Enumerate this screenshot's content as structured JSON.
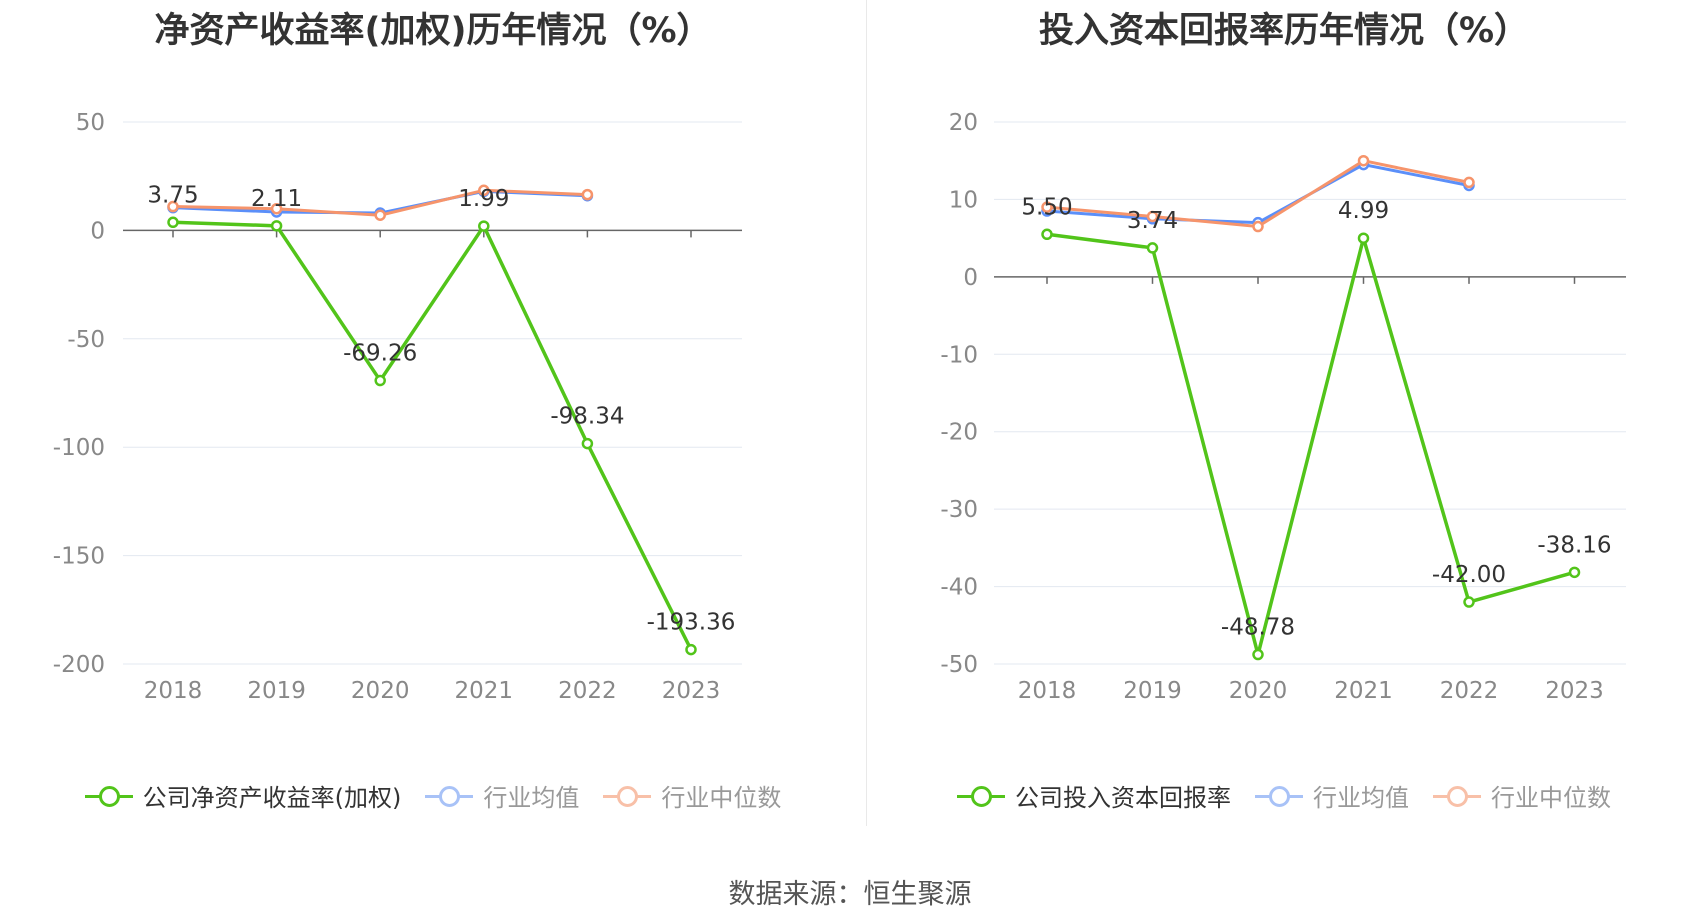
{
  "source": "数据来源：恒生聚源",
  "chart_data": [
    {
      "type": "line",
      "title": "净资产收益率(加权)历年情况（%）",
      "categories": [
        "2018",
        "2019",
        "2020",
        "2021",
        "2022",
        "2023"
      ],
      "ylim": [
        -200,
        50
      ],
      "yticks": [
        50,
        0,
        -50,
        -100,
        -150,
        -200
      ],
      "grid": true,
      "legend_position": "bottom",
      "series": [
        {
          "name": "公司净资产收益率(加权)",
          "color": "#52c41a",
          "values": [
            3.75,
            2.11,
            -69.26,
            1.99,
            -98.34,
            -193.36
          ],
          "labels": [
            "3.75",
            "2.11",
            "-69.26",
            "1.99",
            "-98.34",
            "-193.36"
          ]
        },
        {
          "name": "行业均值",
          "color": "#5b8ff9",
          "values": [
            10.5,
            8.5,
            8.0,
            18.0,
            16.0,
            null
          ]
        },
        {
          "name": "行业中位数",
          "color": "#f6946b",
          "values": [
            11.0,
            10.0,
            7.0,
            18.5,
            16.5,
            null
          ]
        }
      ]
    },
    {
      "type": "line",
      "title": "投入资本回报率历年情况（%）",
      "categories": [
        "2018",
        "2019",
        "2020",
        "2021",
        "2022",
        "2023"
      ],
      "ylim": [
        -50,
        20
      ],
      "yticks": [
        20,
        10,
        0,
        -10,
        -20,
        -30,
        -40,
        -50
      ],
      "grid": true,
      "legend_position": "bottom",
      "series": [
        {
          "name": "公司投入资本回报率",
          "color": "#52c41a",
          "values": [
            5.5,
            3.74,
            -48.78,
            4.99,
            -42.0,
            -38.16
          ],
          "labels": [
            "5.50",
            "3.74",
            "-48.78",
            "4.99",
            "-42.00",
            "-38.16"
          ]
        },
        {
          "name": "行业均值",
          "color": "#5b8ff9",
          "values": [
            8.5,
            7.5,
            7.0,
            14.5,
            11.8,
            null
          ]
        },
        {
          "name": "行业中位数",
          "color": "#f6946b",
          "values": [
            9.0,
            7.8,
            6.5,
            15.0,
            12.2,
            null
          ]
        }
      ]
    }
  ]
}
